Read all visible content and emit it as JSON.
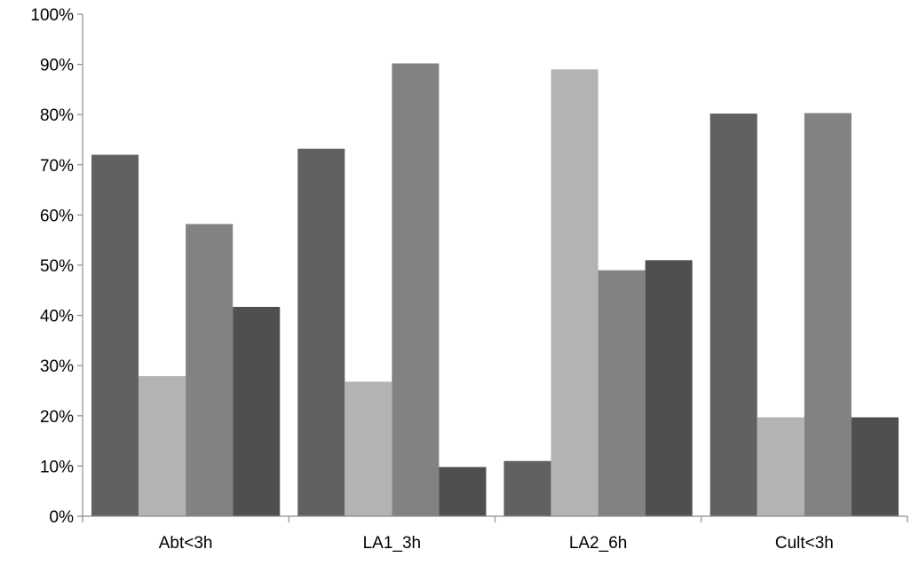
{
  "chart_data": {
    "type": "bar",
    "categories": [
      "Abt<3h",
      "LA1_3h",
      "LA2_6h",
      "Cult<3h"
    ],
    "series": [
      {
        "color": "#616161",
        "values": [
          72,
          73.2,
          11,
          80.2
        ]
      },
      {
        "color": "#b3b3b3",
        "values": [
          27.9,
          26.8,
          89,
          19.7
        ]
      },
      {
        "color": "#828282",
        "values": [
          58.2,
          90.2,
          49,
          80.3
        ]
      },
      {
        "color": "#4f4f4f",
        "values": [
          41.7,
          9.8,
          51,
          19.7
        ]
      }
    ],
    "y_ticks": [
      "0%",
      "10%",
      "20%",
      "30%",
      "40%",
      "50%",
      "60%",
      "70%",
      "80%",
      "90%",
      "100%"
    ],
    "ylim": [
      0,
      100
    ],
    "grid": false,
    "legend": "none",
    "title": "",
    "xlabel": "",
    "ylabel": ""
  }
}
